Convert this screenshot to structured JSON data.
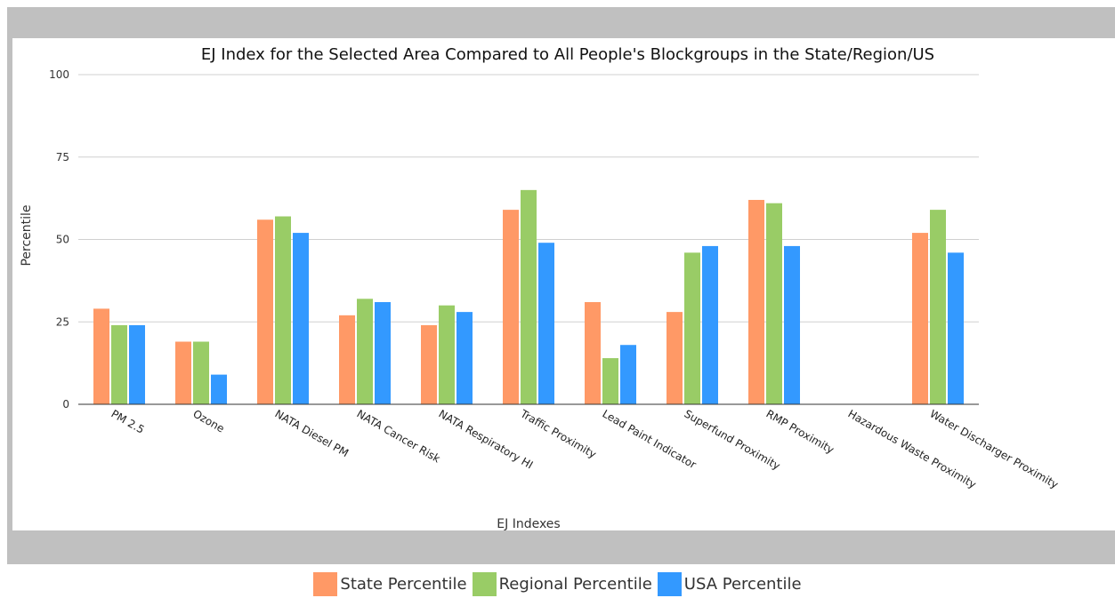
{
  "chart_data": {
    "type": "bar",
    "title": "EJ Index for the Selected Area Compared to All People's Blockgroups in the State/Region/US",
    "xlabel": "EJ Indexes",
    "ylabel": "Percentile",
    "ylim": [
      0,
      100
    ],
    "yticks": [
      0,
      25,
      50,
      75,
      100
    ],
    "grid": true,
    "legend_position": "bottom",
    "categories": [
      "PM 2.5",
      "Ozone",
      "NATA Diesel PM",
      "NATA Cancer Risk",
      "NATA Respiratory HI",
      "Traffic Proximity",
      "Lead Paint Indicator",
      "Superfund Proximity",
      "RMP Proximity",
      "Hazardous Waste Proximity",
      "Water Discharger Proximity"
    ],
    "series": [
      {
        "name": "State Percentile",
        "color": "#ff9966",
        "values": [
          29,
          19,
          56,
          27,
          24,
          59,
          31,
          28,
          62,
          null,
          52
        ]
      },
      {
        "name": "Regional Percentile",
        "color": "#99cc66",
        "values": [
          24,
          19,
          57,
          32,
          30,
          65,
          14,
          46,
          61,
          null,
          59
        ]
      },
      {
        "name": "USA Percentile",
        "color": "#3399ff",
        "values": [
          24,
          9,
          52,
          31,
          28,
          49,
          18,
          48,
          48,
          null,
          46
        ]
      }
    ]
  }
}
